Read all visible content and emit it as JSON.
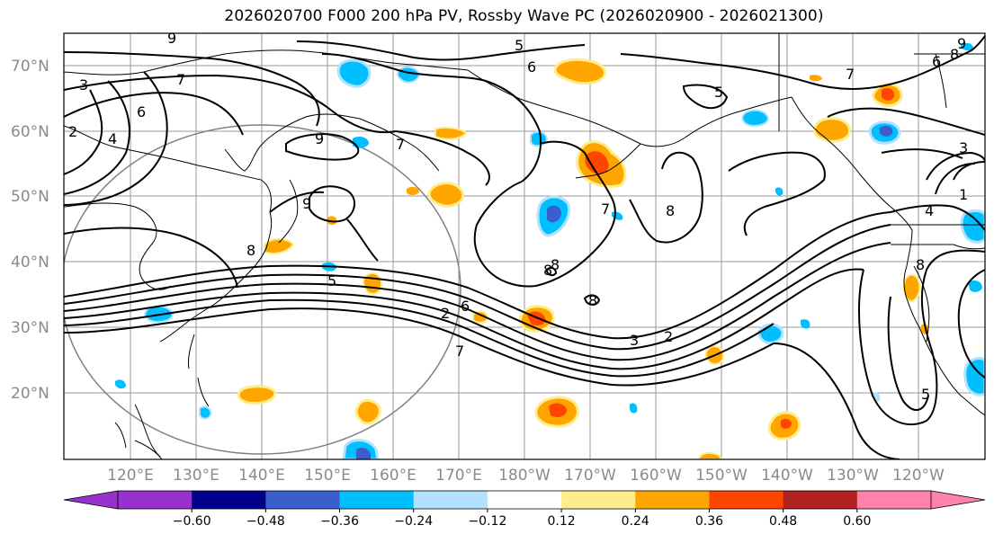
{
  "title": "2026020700 F000 200 hPa PV, Rossby Wave PC (2026020900 - 2026021300)",
  "lat_labels": [
    "70°N",
    "60°N",
    "50°N",
    "40°N",
    "30°N",
    "20°N"
  ],
  "lon_labels": [
    "120°E",
    "130°E",
    "140°E",
    "150°E",
    "160°E",
    "170°E",
    "180°W",
    "170°W",
    "160°W",
    "150°W",
    "140°W",
    "130°W",
    "120°W"
  ],
  "colorbar": {
    "ticks": [
      "−0.60",
      "−0.48",
      "−0.36",
      "−0.24",
      "−0.12",
      "0.12",
      "0.24",
      "0.36",
      "0.48",
      "0.60"
    ],
    "colors": [
      "#9932cc",
      "#00008b",
      "#3a5fcd",
      "#00bfff",
      "#b0e2ff",
      "#ffffff",
      "#ffec8b",
      "#ffa500",
      "#ff4500",
      "#b22222",
      "#ff82ab"
    ],
    "under_color": "#9932cc",
    "over_color": "#ff82ab"
  },
  "contour_labels": [
    "9",
    "5",
    "6",
    "3",
    "7",
    "6",
    "2",
    "4",
    "9",
    "9",
    "8",
    "6",
    "2",
    "7",
    "8",
    "8",
    "7",
    "5",
    "3",
    "5",
    "2",
    "7",
    "6",
    "8",
    "5",
    "1",
    "3",
    "4",
    "7",
    "9",
    "8",
    "8",
    "8"
  ],
  "anomaly_colors": {
    "positive_weak": "#ffec8b",
    "positive": "#ffa500",
    "positive_strong": "#ff4500",
    "negative_weak": "#b0e2ff",
    "negative": "#00bfff",
    "negative_strong": "#3a5fcd"
  }
}
